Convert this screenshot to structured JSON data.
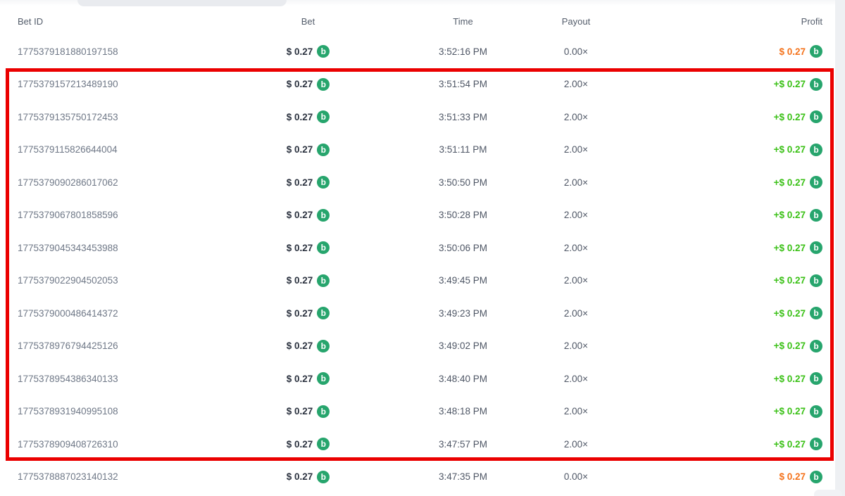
{
  "coin": {
    "name": "bc-coin-icon",
    "letter": "b"
  },
  "colors": {
    "coin_green": "#27a56d",
    "win_green": "#3bc117",
    "loss_orange": "#f4731c",
    "annotation_red": "#eb0000"
  },
  "annotation": {
    "type": "highlight-rectangle",
    "color": "#eb0000"
  },
  "table": {
    "columns": {
      "bet_id": "Bet ID",
      "bet": "Bet",
      "time": "Time",
      "payout": "Payout",
      "profit": "Profit"
    },
    "rows": [
      {
        "bet_id": "1775379181880197158",
        "bet": "$ 0.27",
        "time": "3:52:16 PM",
        "payout": "0.00×",
        "profit": "$ 0.27",
        "win": false,
        "highlighted": false
      },
      {
        "bet_id": "1775379157213489190",
        "bet": "$ 0.27",
        "time": "3:51:54 PM",
        "payout": "2.00×",
        "profit": "+$ 0.27",
        "win": true,
        "highlighted": true
      },
      {
        "bet_id": "1775379135750172453",
        "bet": "$ 0.27",
        "time": "3:51:33 PM",
        "payout": "2.00×",
        "profit": "+$ 0.27",
        "win": true,
        "highlighted": true
      },
      {
        "bet_id": "1775379115826644004",
        "bet": "$ 0.27",
        "time": "3:51:11 PM",
        "payout": "2.00×",
        "profit": "+$ 0.27",
        "win": true,
        "highlighted": true
      },
      {
        "bet_id": "1775379090286017062",
        "bet": "$ 0.27",
        "time": "3:50:50 PM",
        "payout": "2.00×",
        "profit": "+$ 0.27",
        "win": true,
        "highlighted": true
      },
      {
        "bet_id": "1775379067801858596",
        "bet": "$ 0.27",
        "time": "3:50:28 PM",
        "payout": "2.00×",
        "profit": "+$ 0.27",
        "win": true,
        "highlighted": true
      },
      {
        "bet_id": "1775379045343453988",
        "bet": "$ 0.27",
        "time": "3:50:06 PM",
        "payout": "2.00×",
        "profit": "+$ 0.27",
        "win": true,
        "highlighted": true
      },
      {
        "bet_id": "1775379022904502053",
        "bet": "$ 0.27",
        "time": "3:49:45 PM",
        "payout": "2.00×",
        "profit": "+$ 0.27",
        "win": true,
        "highlighted": true
      },
      {
        "bet_id": "1775379000486414372",
        "bet": "$ 0.27",
        "time": "3:49:23 PM",
        "payout": "2.00×",
        "profit": "+$ 0.27",
        "win": true,
        "highlighted": true
      },
      {
        "bet_id": "1775378976794425126",
        "bet": "$ 0.27",
        "time": "3:49:02 PM",
        "payout": "2.00×",
        "profit": "+$ 0.27",
        "win": true,
        "highlighted": true
      },
      {
        "bet_id": "1775378954386340133",
        "bet": "$ 0.27",
        "time": "3:48:40 PM",
        "payout": "2.00×",
        "profit": "+$ 0.27",
        "win": true,
        "highlighted": true
      },
      {
        "bet_id": "1775378931940995108",
        "bet": "$ 0.27",
        "time": "3:48:18 PM",
        "payout": "2.00×",
        "profit": "+$ 0.27",
        "win": true,
        "highlighted": true
      },
      {
        "bet_id": "1775378909408726310",
        "bet": "$ 0.27",
        "time": "3:47:57 PM",
        "payout": "2.00×",
        "profit": "+$ 0.27",
        "win": true,
        "highlighted": true
      },
      {
        "bet_id": "1775378887023140132",
        "bet": "$ 0.27",
        "time": "3:47:35 PM",
        "payout": "0.00×",
        "profit": "$ 0.27",
        "win": false,
        "highlighted": false
      }
    ]
  }
}
